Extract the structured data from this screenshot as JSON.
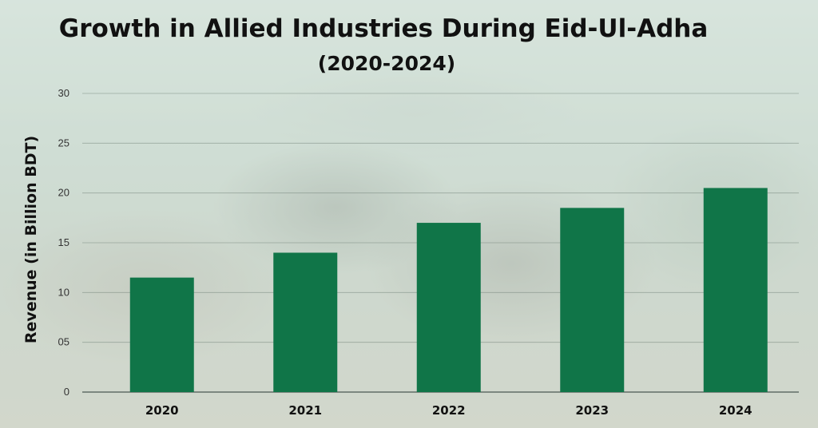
{
  "colors": {
    "bar": "#107548",
    "gridline": "#6f7f76",
    "axis": "#55635b"
  },
  "chart_data": {
    "type": "bar",
    "title": "Growth in Allied Industries During Eid-Ul-Adha",
    "subtitle": "(2020-2024)",
    "ylabel": "Revenue (in Billion BDT)",
    "xlabel": "",
    "categories": [
      "2020",
      "2021",
      "2022",
      "2023",
      "2024"
    ],
    "values": [
      11.5,
      14,
      17,
      18.5,
      20.5
    ],
    "ylim": [
      0,
      30
    ],
    "yticks": [
      0,
      5,
      10,
      15,
      20,
      25,
      30
    ],
    "ytick_labels": [
      "0",
      "05",
      "10",
      "15",
      "20",
      "25",
      "30"
    ],
    "grid": true,
    "legend": "none"
  }
}
